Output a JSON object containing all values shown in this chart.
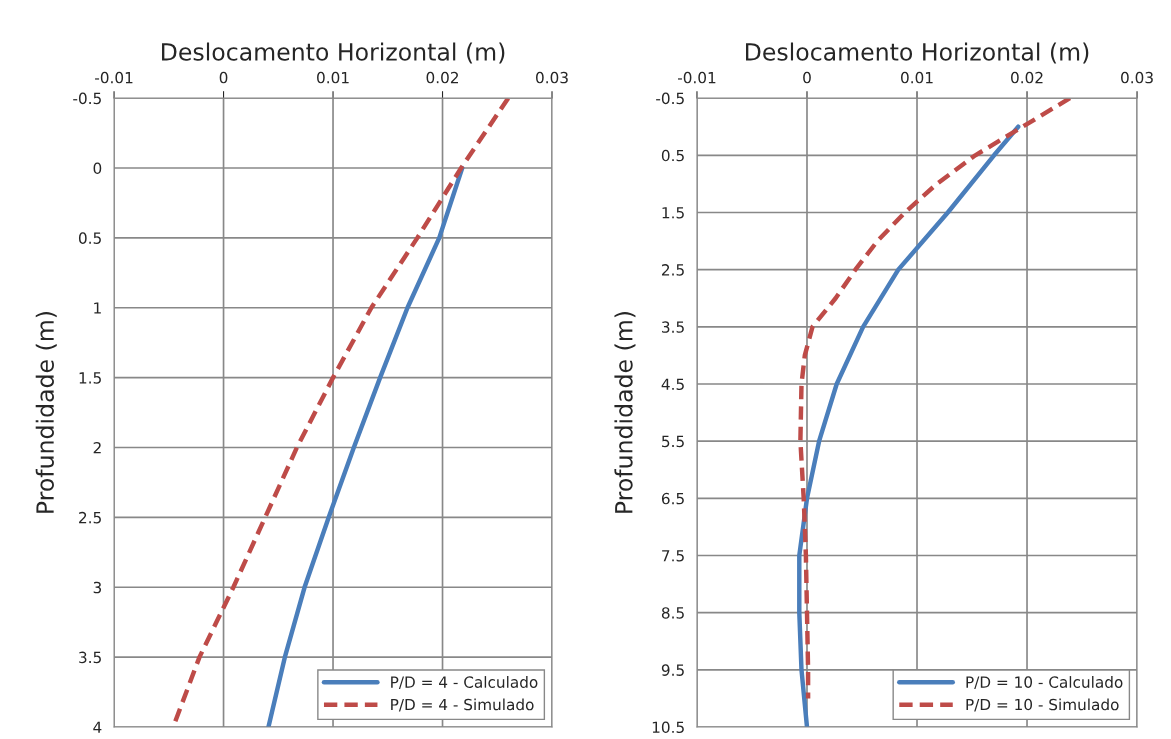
{
  "chart_data": [
    {
      "type": "line",
      "xlabel": "Deslocamento Horizontal (m)",
      "ylabel": "Profundidade (m)",
      "xlim": [
        -0.01,
        0.03
      ],
      "xticks": [
        -0.01,
        0,
        0.01,
        0.02,
        0.03
      ],
      "ylim": [
        4,
        -0.5
      ],
      "yticks": [
        -0.5,
        0,
        0.5,
        1,
        1.5,
        2,
        2.5,
        3,
        3.5,
        4
      ],
      "grid": true,
      "legend": "bottom right",
      "series": [
        {
          "name": "P/D = 4 - Calculado",
          "color": "#4a7ebb",
          "line_style": "solid",
          "x": [
            0.0218,
            0.0197,
            0.0168,
            0.0143,
            0.0119,
            0.0096,
            0.0074,
            0.0056,
            0.0041
          ],
          "values": [
            0,
            0.5,
            1,
            1.5,
            2,
            2.5,
            3,
            3.5,
            4
          ]
        },
        {
          "name": "P/D = 4 - Simulado",
          "color": "#be4b48",
          "line_style": "dashed",
          "x": [
            0.026,
            0.0217,
            0.0177,
            0.0135,
            0.01,
            0.0067,
            0.0038,
            0.0009,
            -0.0022,
            -0.0046
          ],
          "values": [
            -0.5,
            0,
            0.5,
            1,
            1.5,
            2,
            2.5,
            3,
            3.5,
            4
          ]
        }
      ]
    },
    {
      "type": "line",
      "xlabel": "Deslocamento Horizontal (m)",
      "ylabel": "Profundidade (m)",
      "xlim": [
        -0.01,
        0.03
      ],
      "xticks": [
        -0.01,
        0,
        0.01,
        0.02,
        0.03
      ],
      "ylim": [
        10.5,
        -0.5
      ],
      "yticks": [
        -0.5,
        0.5,
        1.5,
        2.5,
        3.5,
        4.5,
        5.5,
        6.5,
        7.5,
        8.5,
        9.5,
        10.5
      ],
      "grid": true,
      "legend": "bottom right",
      "series": [
        {
          "name": "P/D = 10 - Calculado",
          "color": "#4a7ebb",
          "line_style": "solid",
          "x": [
            0.0192,
            0.017,
            0.0128,
            0.0083,
            0.0051,
            0.0027,
            0.0011,
            0,
            -0.0007,
            -0.0007,
            -0.0005,
            0
          ],
          "values": [
            0,
            0.5,
            1.5,
            2.5,
            3.5,
            4.5,
            5.5,
            6.5,
            7.5,
            8.5,
            9.5,
            10.5
          ]
        },
        {
          "name": "P/D = 10 - Simulado",
          "color": "#be4b48",
          "line_style": "dashed",
          "x": [
            0.0239,
            0.0196,
            0.0153,
            0.0118,
            0.0089,
            0.0064,
            0.0044,
            0.0026,
            0.0005,
            -0.0002,
            -0.0005,
            -0.0006,
            -0.0003,
            -0.0001,
            0,
            0.0001,
            0.0001
          ],
          "values": [
            -0.5,
            0,
            0.5,
            1,
            1.5,
            2,
            2.5,
            3,
            3.5,
            4,
            4.5,
            5.5,
            6.5,
            7.5,
            8.5,
            9.5,
            10
          ]
        }
      ]
    }
  ]
}
